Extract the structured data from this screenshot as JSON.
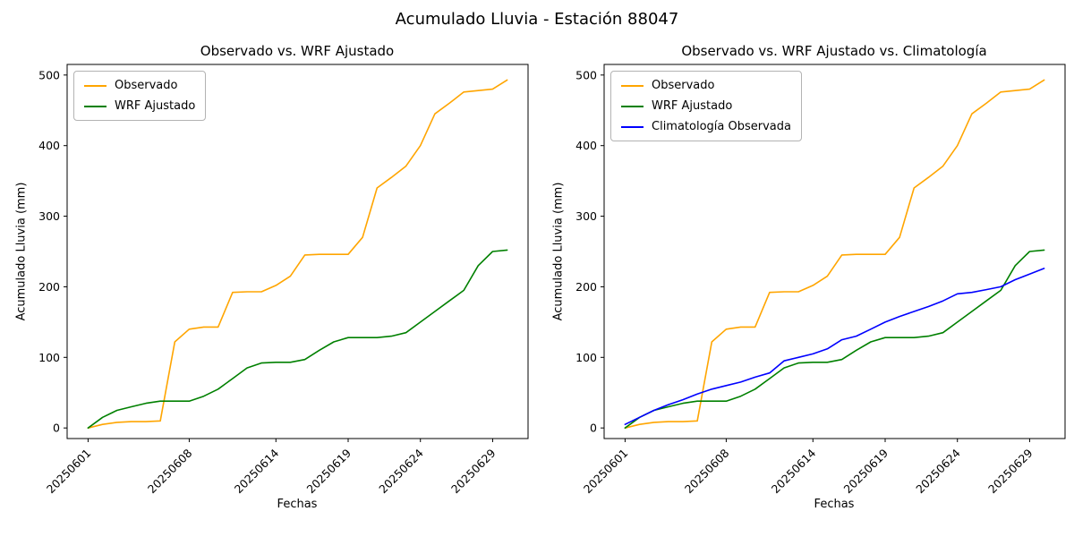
{
  "figure": {
    "title": "Acumulado Lluvia - Estación 88047"
  },
  "chart_data": [
    {
      "type": "line",
      "title": "Observado vs. WRF Ajustado",
      "xlabel": "Fechas",
      "ylabel": "Acumulado Lluvia (mm)",
      "x": [
        "20250601",
        "20250602",
        "20250603",
        "20250604",
        "20250605",
        "20250606",
        "20250607",
        "20250608",
        "20250609",
        "20250610",
        "20250611",
        "20250612",
        "20250613",
        "20250614",
        "20250615",
        "20250616",
        "20250617",
        "20250618",
        "20250619",
        "20250620",
        "20250621",
        "20250622",
        "20250623",
        "20250624",
        "20250625",
        "20250626",
        "20250627",
        "20250628",
        "20250629",
        "20250630"
      ],
      "xticks": [
        "20250601",
        "20250608",
        "20250614",
        "20250619",
        "20250624",
        "20250629"
      ],
      "yticks": [
        0,
        100,
        200,
        300,
        400,
        500
      ],
      "ylim": [
        -15,
        515
      ],
      "grid": false,
      "legend_position": "upper left",
      "series": [
        {
          "name": "Observado",
          "color": "#ffa500",
          "values": [
            0,
            5,
            8,
            9,
            9,
            10,
            122,
            140,
            143,
            143,
            192,
            193,
            193,
            202,
            215,
            245,
            246,
            246,
            246,
            270,
            340,
            355,
            371,
            400,
            445,
            460,
            476,
            478,
            480,
            493
          ]
        },
        {
          "name": "WRF Ajustado",
          "color": "#008000",
          "values": [
            0,
            15,
            25,
            30,
            35,
            38,
            38,
            38,
            45,
            55,
            70,
            85,
            92,
            93,
            93,
            97,
            110,
            122,
            128,
            128,
            128,
            130,
            135,
            150,
            165,
            180,
            195,
            230,
            250,
            252
          ]
        }
      ]
    },
    {
      "type": "line",
      "title": "Observado vs. WRF Ajustado vs. Climatología",
      "xlabel": "Fechas",
      "ylabel": "Acumulado Lluvia (mm)",
      "x": [
        "20250601",
        "20250602",
        "20250603",
        "20250604",
        "20250605",
        "20250606",
        "20250607",
        "20250608",
        "20250609",
        "20250610",
        "20250611",
        "20250612",
        "20250613",
        "20250614",
        "20250615",
        "20250616",
        "20250617",
        "20250618",
        "20250619",
        "20250620",
        "20250621",
        "20250622",
        "20250623",
        "20250624",
        "20250625",
        "20250626",
        "20250627",
        "20250628",
        "20250629",
        "20250630"
      ],
      "xticks": [
        "20250601",
        "20250608",
        "20250614",
        "20250619",
        "20250624",
        "20250629"
      ],
      "yticks": [
        0,
        100,
        200,
        300,
        400,
        500
      ],
      "ylim": [
        -15,
        515
      ],
      "grid": false,
      "legend_position": "upper left",
      "series": [
        {
          "name": "Observado",
          "color": "#ffa500",
          "values": [
            0,
            5,
            8,
            9,
            9,
            10,
            122,
            140,
            143,
            143,
            192,
            193,
            193,
            202,
            215,
            245,
            246,
            246,
            246,
            270,
            340,
            355,
            371,
            400,
            445,
            460,
            476,
            478,
            480,
            493
          ]
        },
        {
          "name": "WRF Ajustado",
          "color": "#008000",
          "values": [
            0,
            15,
            25,
            30,
            35,
            38,
            38,
            38,
            45,
            55,
            70,
            85,
            92,
            93,
            93,
            97,
            110,
            122,
            128,
            128,
            128,
            130,
            135,
            150,
            165,
            180,
            195,
            230,
            250,
            252
          ]
        },
        {
          "name": "Climatología Observada",
          "color": "#0000ff",
          "values": [
            5,
            15,
            25,
            33,
            40,
            48,
            55,
            60,
            65,
            72,
            78,
            95,
            100,
            105,
            112,
            125,
            130,
            140,
            150,
            158,
            165,
            172,
            180,
            190,
            192,
            196,
            200,
            210,
            218,
            226
          ]
        }
      ]
    }
  ]
}
